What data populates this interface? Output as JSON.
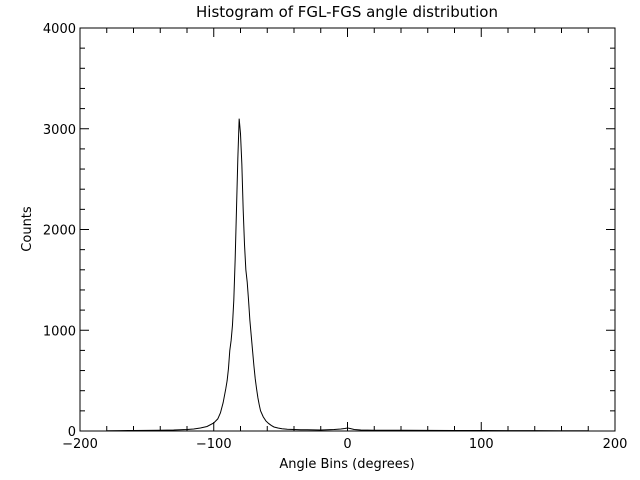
{
  "chart_data": {
    "type": "line",
    "title": "Histogram of FGL-FGS angle distribution",
    "xlabel": "Angle Bins (degrees)",
    "ylabel": "Counts",
    "xlim": [
      -200,
      200
    ],
    "ylim": [
      0,
      4000
    ],
    "x_ticks": [
      -200,
      -100,
      0,
      100,
      200
    ],
    "y_ticks": [
      0,
      1000,
      2000,
      3000,
      4000
    ],
    "x_tick_labels": [
      "−200",
      "−100",
      "0",
      "100",
      "200"
    ],
    "y_tick_labels": [
      "0",
      "1000",
      "2000",
      "3000",
      "4000"
    ],
    "grid": false,
    "series": [
      {
        "x": [
          -180,
          -170,
          -160,
          -150,
          -140,
          -130,
          -120,
          -115,
          -110,
          -105,
          -100,
          -97,
          -95,
          -93,
          -91,
          -90,
          -89,
          -88,
          -87,
          -86,
          -85,
          -84,
          -83,
          -82,
          -81,
          -80,
          -79,
          -78,
          -77,
          -76,
          -75,
          -74,
          -73,
          -72,
          -71,
          -70,
          -69,
          -68,
          -67,
          -66,
          -65,
          -63,
          -61,
          -59,
          -57,
          -55,
          -52,
          -49,
          -45,
          -40,
          -35,
          -30,
          -25,
          -20,
          -15,
          -10,
          -5,
          -2,
          0,
          2,
          5,
          10,
          20,
          40,
          60,
          80,
          100,
          120,
          140,
          160,
          180
        ],
        "y": [
          3,
          4,
          5,
          6,
          8,
          10,
          15,
          20,
          30,
          45,
          80,
          120,
          180,
          280,
          420,
          500,
          620,
          800,
          900,
          1050,
          1300,
          1700,
          2200,
          2700,
          3100,
          2950,
          2650,
          2200,
          1850,
          1600,
          1480,
          1300,
          1100,
          950,
          800,
          650,
          520,
          420,
          330,
          260,
          200,
          140,
          100,
          75,
          55,
          40,
          30,
          22,
          18,
          15,
          13,
          12,
          11,
          10,
          12,
          15,
          20,
          25,
          30,
          25,
          15,
          10,
          8,
          7,
          6,
          5,
          5,
          4,
          4,
          3,
          3
        ]
      }
    ]
  }
}
